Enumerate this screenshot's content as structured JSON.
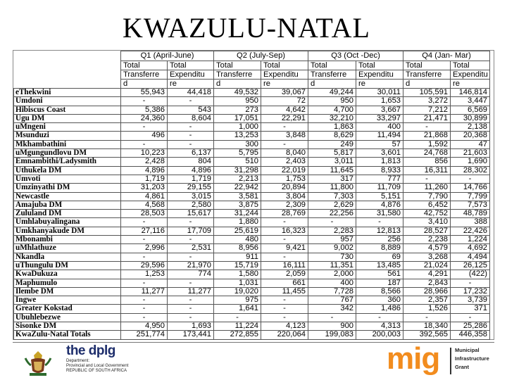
{
  "title": "KWAZULU-NATAL",
  "table": {
    "quarters": [
      "Q1 (April-June)",
      "Q2 (July-Sep)",
      "Q3 (Oct -Dec)",
      "Q4 (Jan- Mar)"
    ],
    "sub_lines": [
      [
        "Total",
        "Total",
        "Total",
        "Total",
        "Total",
        "Total",
        "Total",
        "Total"
      ],
      [
        "Transferre",
        "Expenditu",
        "Transferre",
        "Expenditu",
        "Transferre",
        "Expenditu",
        "Transferre",
        "Expenditu"
      ],
      [
        "d",
        "re",
        "d",
        "re",
        "d",
        "re",
        "d",
        "re"
      ]
    ],
    "rows": [
      {
        "name": "eThekwini",
        "v": [
          "55,943",
          "44,418",
          "49,532",
          "39,067",
          "49,244",
          "30,011",
          "105,591",
          "146,814"
        ]
      },
      {
        "name": "Umdoni",
        "v": [
          "-",
          "-",
          "950",
          "72",
          "950",
          "1,653",
          "3,272",
          "3,447"
        ]
      },
      {
        "name": "Hibiscus Coast",
        "v": [
          "5,386",
          "543",
          "273",
          "4,642",
          "4,700",
          "3,667",
          "7,212",
          "6,569"
        ]
      },
      {
        "name": "Ugu DM",
        "v": [
          "24,360",
          "8,604",
          "17,051",
          "22,291",
          "32,210",
          "33,297",
          "21,471",
          "30,899"
        ]
      },
      {
        "name": "uMngeni",
        "v": [
          "-",
          "-",
          "1,000",
          "-",
          "1,863",
          "400",
          "-",
          "2,138"
        ]
      },
      {
        "name": "Msunduzi",
        "v": [
          "496",
          "-",
          "13,253",
          "3,848",
          "8,629",
          "11,494",
          "21,868",
          "20,368"
        ]
      },
      {
        "name": "Mkhambathini",
        "v": [
          "-",
          "-",
          "300",
          "-",
          "249",
          "57",
          "1,592",
          "47"
        ]
      },
      {
        "name": "uMgungundlovu DM",
        "v": [
          "10,223",
          "6,137",
          "5,795",
          "8,040",
          "5,817",
          "3,601",
          "24,768",
          "21,603"
        ]
      },
      {
        "name": "Emnambithi/Ladysmith",
        "v": [
          "2,428",
          "804",
          "510",
          "2,403",
          "3,011",
          "1,813",
          "856",
          "1,690"
        ]
      },
      {
        "name": "Uthukela DM",
        "v": [
          "4,896",
          "4,896",
          "31,298",
          "22,019",
          "11,645",
          "8,933",
          "16,311",
          "28,302"
        ]
      },
      {
        "name": "Umvoti",
        "v": [
          "1,719",
          "1,719",
          "2,213",
          "1,753",
          "317",
          "777",
          "-",
          "-"
        ]
      },
      {
        "name": "Umzinyathi DM",
        "v": [
          "31,203",
          "29,155",
          "22,942",
          "20,894",
          "11,800",
          "11,709",
          "11,260",
          "14,766"
        ]
      },
      {
        "name": "Newcastle",
        "v": [
          "4,861",
          "3,015",
          "3,581",
          "3,804",
          "7,303",
          "5,151",
          "7,790",
          "7,799"
        ]
      },
      {
        "name": "Amajuba DM",
        "v": [
          "4,568",
          "2,580",
          "3,875",
          "2,309",
          "2,629",
          "4,876",
          "6,452",
          "7,573"
        ]
      },
      {
        "name": "Zululand DM",
        "v": [
          "28,503",
          "15,617",
          "31,244",
          "28,769",
          "22,256",
          "31,580",
          "42,752",
          "48,789"
        ]
      },
      {
        "name": "Umhlabuyalingana",
        "v": [
          "-",
          "-",
          "1,880",
          "-",
          "-",
          "-",
          "3,410",
          "388"
        ]
      },
      {
        "name": "Umkhanyakude DM",
        "v": [
          "27,116",
          "17,709",
          "25,619",
          "16,323",
          "2,283",
          "12,813",
          "28,527",
          "22,426"
        ]
      },
      {
        "name": "Mbonambi",
        "v": [
          "-",
          "-",
          "480",
          "-",
          "957",
          "256",
          "2,238",
          "1,224"
        ]
      },
      {
        "name": "uMhlathuze",
        "v": [
          "2,996",
          "2,531",
          "8,956",
          "9,421",
          "9,002",
          "8,889",
          "4,579",
          "4,692"
        ]
      },
      {
        "name": "Nkandla",
        "v": [
          "-",
          "-",
          "911",
          "-",
          "730",
          "69",
          "3,268",
          "4,494"
        ]
      },
      {
        "name": "uThungulu DM",
        "v": [
          "29,596",
          "21,970",
          "15,719",
          "16,111",
          "11,351",
          "13,485",
          "21,024",
          "26,125"
        ]
      },
      {
        "name": "KwaDukuza",
        "v": [
          "1,253",
          "774",
          "1,580",
          "2,059",
          "2,000",
          "561",
          "4,291",
          "(422)"
        ]
      },
      {
        "name": "Maphumulo",
        "v": [
          "-",
          "-",
          "1,031",
          "661",
          "400",
          "187",
          "2,843",
          "-"
        ]
      },
      {
        "name": "Ilembe DM",
        "v": [
          "11,277",
          "11,277",
          "19,020",
          "11,455",
          "7,728",
          "8,566",
          "28,966",
          "17,232"
        ]
      },
      {
        "name": "Ingwe",
        "v": [
          "-",
          "-",
          "975",
          "-",
          "767",
          "360",
          "2,357",
          "3,739"
        ]
      },
      {
        "name": "Greater Kokstad",
        "v": [
          "-",
          "-",
          "1,641",
          "-",
          "342",
          "1,486",
          "1,526",
          "371"
        ]
      },
      {
        "name": "Ubuhlebezwe",
        "v": [
          "-",
          "-",
          "-",
          "-",
          "-",
          "-",
          "-",
          "-"
        ]
      },
      {
        "name": "Sisonke DM",
        "v": [
          "4,950",
          "1,693",
          "11,224",
          "4,123",
          "900",
          "4,313",
          "18,340",
          "25,286"
        ]
      },
      {
        "name": "KwaZulu-Natal Totals",
        "v": [
          "251,774",
          "173,441",
          "272,855",
          "220,064",
          "199,083",
          "200,003",
          "392,565",
          "446,358"
        ]
      }
    ]
  },
  "footer": {
    "dplg_name": "the dplg",
    "dplg_lines": [
      "Department:",
      "Provincial and Local Government",
      "REPUBLIC OF SOUTH AFRICA"
    ],
    "mig_logo": "mig",
    "mig_lines": [
      "Municipal",
      "Infrastructure",
      "Grant"
    ]
  },
  "colors": {
    "dplg_blue": "#1d2d6b",
    "mig_orange": "#f28c1e"
  }
}
